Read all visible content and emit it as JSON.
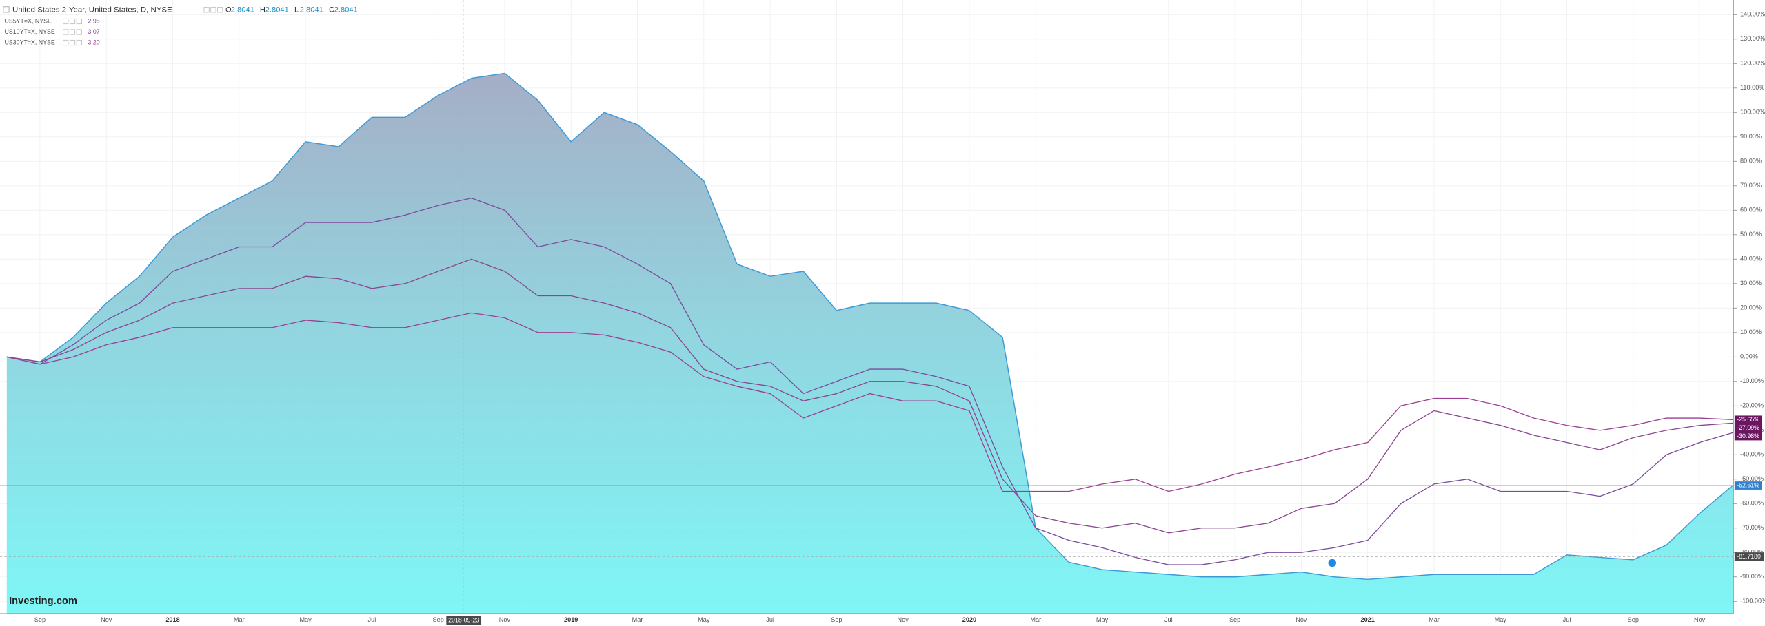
{
  "chart_data": {
    "type": "area-line",
    "title": "United States 2-Year, United States, D, NYSE",
    "ohlc": [
      {
        "label": "O",
        "value": 2.8041
      },
      {
        "label": "H",
        "value": 2.8041
      },
      {
        "label": "L",
        "value": 2.8041
      },
      {
        "label": "C",
        "value": 2.8041
      }
    ],
    "logo": "Investing.com",
    "categories": [
      null,
      "Sep",
      null,
      "Nov",
      null,
      "2018",
      null,
      "Mar",
      null,
      "May",
      null,
      "Jul",
      null,
      "Sep",
      null,
      "Nov",
      null,
      "2019",
      null,
      "Mar",
      null,
      "May",
      null,
      "Jul",
      null,
      "Sep",
      null,
      "Nov",
      null,
      "2020",
      null,
      "Mar",
      null,
      "May",
      null,
      "Jul",
      null,
      "Sep",
      null,
      "Nov",
      null,
      "2021",
      null,
      "Mar",
      null,
      "May",
      null,
      "Jul",
      null,
      "Sep",
      null,
      "Nov",
      null
    ],
    "series": [
      {
        "name": "United States 2-Year",
        "color": "#3d9ad6",
        "style": "area",
        "last_label": "-52.61%",
        "values": [
          0,
          -2,
          8,
          22,
          33,
          49,
          58,
          65,
          72,
          88,
          86,
          98,
          98,
          107,
          114,
          116,
          105,
          88,
          100,
          95,
          84,
          72,
          38,
          33,
          35,
          19,
          22,
          22,
          22,
          19,
          8,
          -70,
          -84,
          -87,
          -88,
          -89,
          -90,
          -90,
          -89,
          -88,
          -90,
          -91,
          -90,
          -89,
          -89,
          -89,
          -89,
          -81,
          -82,
          -83,
          -77,
          -64,
          -52.61
        ]
      },
      {
        "name": "US5YT=X, NYSE",
        "color": "#7a4c9c",
        "style": "line",
        "legend_value": 2.95,
        "last_label": "-30.98%",
        "values": [
          0,
          -3,
          5,
          15,
          22,
          35,
          40,
          45,
          45,
          55,
          55,
          55,
          58,
          62,
          65,
          60,
          45,
          48,
          45,
          38,
          30,
          5,
          -5,
          -2,
          -15,
          -10,
          -5,
          -5,
          -8,
          -12,
          -45,
          -70,
          -75,
          -78,
          -82,
          -85,
          -85,
          -83,
          -80,
          -80,
          -78,
          -75,
          -60,
          -52,
          -50,
          -55,
          -55,
          -55,
          -57,
          -52,
          -40,
          -35,
          -30.98
        ]
      },
      {
        "name": "US10YT=X, NYSE",
        "color": "#8a4590",
        "style": "line",
        "legend_value": 3.07,
        "last_label": "-27.09%",
        "values": [
          0,
          -2,
          3,
          10,
          15,
          22,
          25,
          28,
          28,
          33,
          32,
          28,
          30,
          35,
          40,
          35,
          25,
          25,
          22,
          18,
          12,
          -5,
          -10,
          -12,
          -18,
          -15,
          -10,
          -10,
          -12,
          -18,
          -50,
          -65,
          -68,
          -70,
          -68,
          -72,
          -70,
          -70,
          -68,
          -62,
          -60,
          -50,
          -30,
          -22,
          -25,
          -28,
          -32,
          -35,
          -38,
          -33,
          -30,
          -28,
          -27.09
        ]
      },
      {
        "name": "US30YT=X, NYSE",
        "color": "#9c3f93",
        "style": "line",
        "legend_value": 3.2,
        "legend_label": "3.20",
        "last_label": "-25.65%",
        "values": [
          0,
          -3,
          0,
          5,
          8,
          12,
          12,
          12,
          12,
          15,
          14,
          12,
          12,
          15,
          18,
          16,
          10,
          10,
          9,
          6,
          2,
          -8,
          -12,
          -15,
          -25,
          -20,
          -15,
          -18,
          -18,
          -22,
          -55,
          -55,
          -55,
          -52,
          -50,
          -55,
          -52,
          -48,
          -45,
          -42,
          -38,
          -35,
          -20,
          -17,
          -17,
          -20,
          -25,
          -28,
          -30,
          -28,
          -25,
          -25,
          -25.65
        ]
      }
    ],
    "crosshair": {
      "date": "2018-09-23",
      "value": -81.718,
      "label": "-81.7180"
    },
    "ylim": [
      -105,
      146
    ],
    "yticks": [
      {
        "value": 140,
        "label": "140.00%"
      },
      {
        "value": 130,
        "label": "130.00%"
      },
      {
        "value": 120,
        "label": "120.00%"
      },
      {
        "value": 110,
        "label": "110.00%"
      },
      {
        "value": 100,
        "label": "100.00%"
      },
      {
        "value": 90,
        "label": "90.00%"
      },
      {
        "value": 80,
        "label": "80.00%"
      },
      {
        "value": 70,
        "label": "70.00%"
      },
      {
        "value": 60,
        "label": "60.00%"
      },
      {
        "value": 50,
        "label": "50.00%"
      },
      {
        "value": 40,
        "label": "40.00%"
      },
      {
        "value": 30,
        "label": "30.00%"
      },
      {
        "value": 20,
        "label": "20.00%"
      },
      {
        "value": 10,
        "label": "10.00%"
      },
      {
        "value": 0,
        "label": "0.00%"
      },
      {
        "value": -10,
        "label": "-10.00%"
      },
      {
        "value": -20,
        "label": "-20.00%"
      },
      {
        "value": -30,
        "label": "-30.00%"
      },
      {
        "value": -40,
        "label": "-40.00%"
      },
      {
        "value": -50,
        "label": "-50.00%"
      },
      {
        "value": -60,
        "label": "-60.00%"
      },
      {
        "value": -70,
        "label": "-70.00%"
      },
      {
        "value": -80,
        "label": "-80.00%"
      },
      {
        "value": -90,
        "label": "-90.00%"
      },
      {
        "value": -100,
        "label": "-100.00%"
      }
    ],
    "grid": true
  }
}
